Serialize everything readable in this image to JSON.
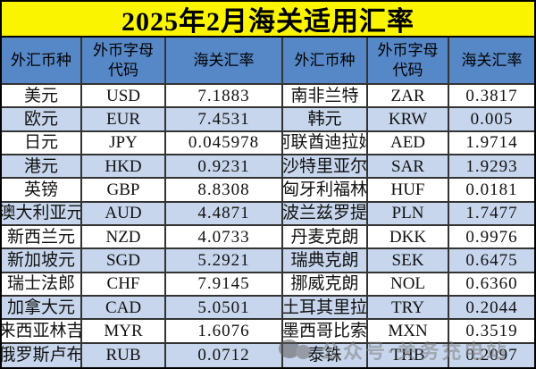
{
  "title": "2025年2月海关适用汇率",
  "header_labels": [
    "外汇币种",
    "外币字母\n代码",
    "海关汇率",
    "外汇币种",
    "外币字母\n代码",
    "海关汇率"
  ],
  "watermark": {
    "text": "公众号·关务充电站",
    "icon": "chat-bubbles-icon"
  },
  "colors": {
    "title_bg": "#FAF400",
    "header_bg": "#5687C6",
    "row_bg": "#FFFFFF",
    "row_alt_bg": "#C7D6EC",
    "grid_line": "#333333",
    "text": "#111111",
    "watermark": "#808080"
  },
  "chart_data": {
    "type": "table",
    "title": "2025年2月海关适用汇率",
    "columns": [
      "外汇币种",
      "外币字母代码",
      "海关汇率"
    ],
    "layout": "two column-groups side by side, 12 rows each; alternating white/blue row shading",
    "rows": [
      [
        "美元",
        "USD",
        "7.1883"
      ],
      [
        "欧元",
        "EUR",
        "7.4531"
      ],
      [
        "日元",
        "JPY",
        "0.045978"
      ],
      [
        "港元",
        "HKD",
        "0.9231"
      ],
      [
        "英镑",
        "GBP",
        "8.8308"
      ],
      [
        "澳大利亚元",
        "AUD",
        "4.4871"
      ],
      [
        "新西兰元",
        "NZD",
        "4.0733"
      ],
      [
        "新加坡元",
        "SGD",
        "5.2921"
      ],
      [
        "瑞士法郎",
        "CHF",
        "7.9145"
      ],
      [
        "加拿大元",
        "CAD",
        "5.0501"
      ],
      [
        "马来西亚林吉特",
        "MYR",
        "1.6076"
      ],
      [
        "俄罗斯卢布",
        "RUB",
        "0.0712"
      ],
      [
        "南非兰特",
        "ZAR",
        "0.3817"
      ],
      [
        "韩元",
        "KRW",
        "0.005"
      ],
      [
        "阿联酋迪拉姆",
        "AED",
        "1.9714"
      ],
      [
        "沙特里亚尔",
        "SAR",
        "1.9293"
      ],
      [
        "匈牙利福林",
        "HUF",
        "0.0181"
      ],
      [
        "波兰兹罗提",
        "PLN",
        "1.7477"
      ],
      [
        "丹麦克朗",
        "DKK",
        "0.9976"
      ],
      [
        "瑞典克朗",
        "SEK",
        "0.6475"
      ],
      [
        "挪威克朗",
        "NOL",
        "0.6360"
      ],
      [
        "土耳其里拉",
        "TRY",
        "0.2044"
      ],
      [
        "墨西哥比索",
        "MXN",
        "0.3519"
      ],
      [
        "泰铢",
        "THB",
        "0.2097"
      ]
    ]
  }
}
